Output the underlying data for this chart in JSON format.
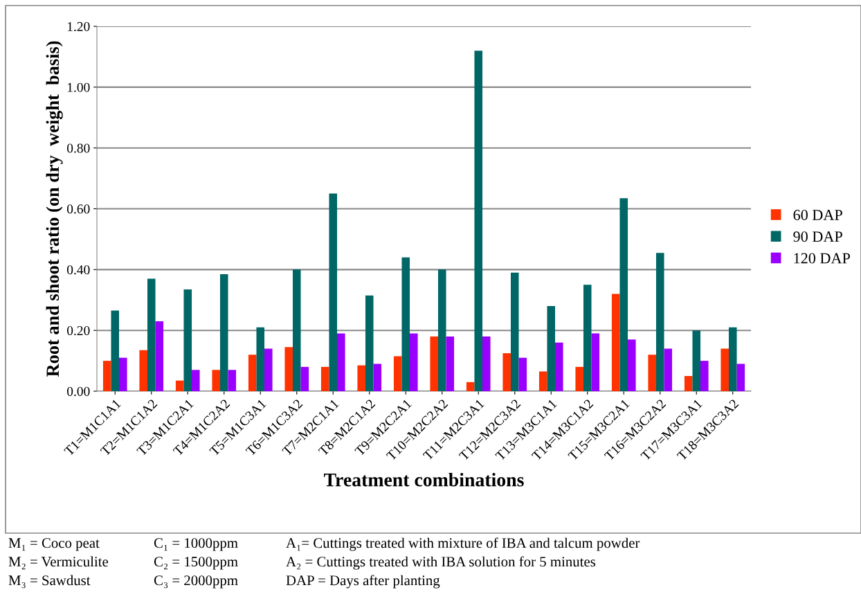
{
  "chart_data": {
    "type": "bar",
    "xlabel": "Treatment combinations",
    "ylabel": "Root and shoot ratio (on dry  weight  basis)",
    "categories": [
      "T1=M1C1A1",
      "T2=M1C1A2",
      "T3=M1C2A1",
      "T4=M1C2A2",
      "T5=M1C3A1",
      "T6=M1C3A2",
      "T7=M2C1A1",
      "T8=M2C1A2",
      "T9=M2C2A1",
      "T10=M2C2A2",
      "T11=M2C3A1",
      "T12=M2C3A2",
      "T13=M3C1A1",
      "T14=M3C1A2",
      "T15=M3C2A1",
      "T16=M3C2A2",
      "T17=M3C3A1",
      "T18=M3C3A2"
    ],
    "series": [
      {
        "name": "60 DAP",
        "color": "#ff3300",
        "values": [
          0.1,
          0.135,
          0.035,
          0.07,
          0.12,
          0.145,
          0.08,
          0.085,
          0.115,
          0.18,
          0.03,
          0.125,
          0.065,
          0.08,
          0.32,
          0.12,
          0.05,
          0.14
        ]
      },
      {
        "name": "90 DAP",
        "color": "#006666",
        "values": [
          0.265,
          0.37,
          0.335,
          0.385,
          0.21,
          0.4,
          0.65,
          0.315,
          0.44,
          0.4,
          1.12,
          0.39,
          0.28,
          0.35,
          0.635,
          0.455,
          0.2,
          0.21
        ]
      },
      {
        "name": "120 DAP",
        "color": "#9900ff",
        "values": [
          0.11,
          0.23,
          0.07,
          0.07,
          0.14,
          0.08,
          0.19,
          0.09,
          0.19,
          0.18,
          0.18,
          0.11,
          0.16,
          0.19,
          0.17,
          0.14,
          0.1,
          0.09
        ]
      }
    ],
    "ylim": [
      0,
      1.2
    ],
    "yticks": [
      {
        "value": 0,
        "label": "0.00"
      },
      {
        "value": 0.2,
        "label": "0.20"
      },
      {
        "value": 0.4,
        "label": "0.40"
      },
      {
        "value": 0.6,
        "label": "0.60"
      },
      {
        "value": 0.8,
        "label": "0.80"
      },
      {
        "value": 1.0,
        "label": "1.00"
      },
      {
        "value": 1.2,
        "label": "1.20"
      }
    ],
    "grid": "y",
    "legend": "right",
    "annotations": [
      "M₁ = Coco peat",
      "C₁ = 1000ppm",
      "A₁= Cuttings treated with mixture of IBA and talcum powder",
      "M₂ = Vermiculite",
      "C₂ = 1500ppm",
      "A₂ = Cuttings treated with IBA solution for 5 minutes",
      "M₃ = Sawdust",
      "C₃ = 2000ppm",
      "DAP = Days after planting"
    ]
  }
}
